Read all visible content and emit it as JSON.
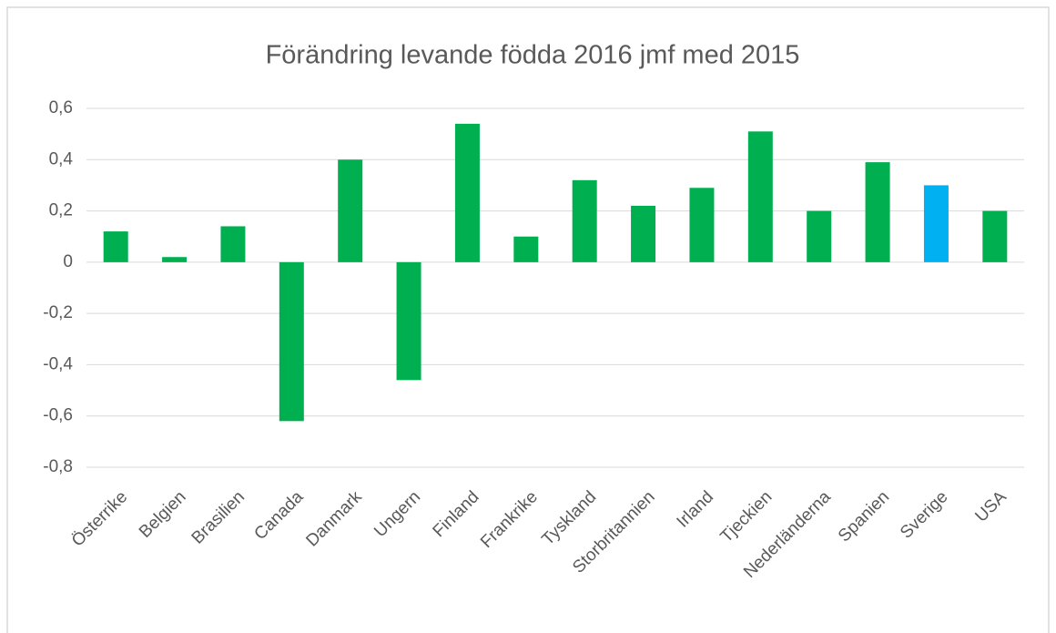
{
  "chart_data": {
    "type": "bar",
    "title": "Förändring levande födda 2016 jmf med 2015",
    "categories": [
      "Österrike",
      "Belgien",
      "Brasilien",
      "Canada",
      "Danmark",
      "Ungern",
      "Finland",
      "Frankrike",
      "Tyskland",
      "Storbritannien",
      "Irland",
      "Tjeckien",
      "Nederländerna",
      "Spanien",
      "Sverige",
      "USA"
    ],
    "values": [
      0.12,
      0.02,
      0.14,
      -0.62,
      0.4,
      -0.46,
      0.54,
      0.1,
      0.32,
      0.22,
      0.29,
      0.51,
      0.2,
      0.39,
      0.3,
      0.2
    ],
    "colors": [
      "#00b050",
      "#00b050",
      "#00b050",
      "#00b050",
      "#00b050",
      "#00b050",
      "#00b050",
      "#00b050",
      "#00b050",
      "#00b050",
      "#00b050",
      "#00b050",
      "#00b050",
      "#00b050",
      "#00b0f0",
      "#00b050"
    ],
    "ylim": [
      -0.8,
      0.6
    ],
    "yticks": [
      {
        "value": -0.8,
        "label": "-0,8"
      },
      {
        "value": -0.6,
        "label": "-0,6"
      },
      {
        "value": -0.4,
        "label": "-0,4"
      },
      {
        "value": -0.2,
        "label": "-0,2"
      },
      0,
      {
        "value": 0.2,
        "label": "0,2"
      },
      {
        "value": 0.4,
        "label": "0,4"
      },
      {
        "value": 0.6,
        "label": "0,6"
      }
    ],
    "grid": true
  }
}
